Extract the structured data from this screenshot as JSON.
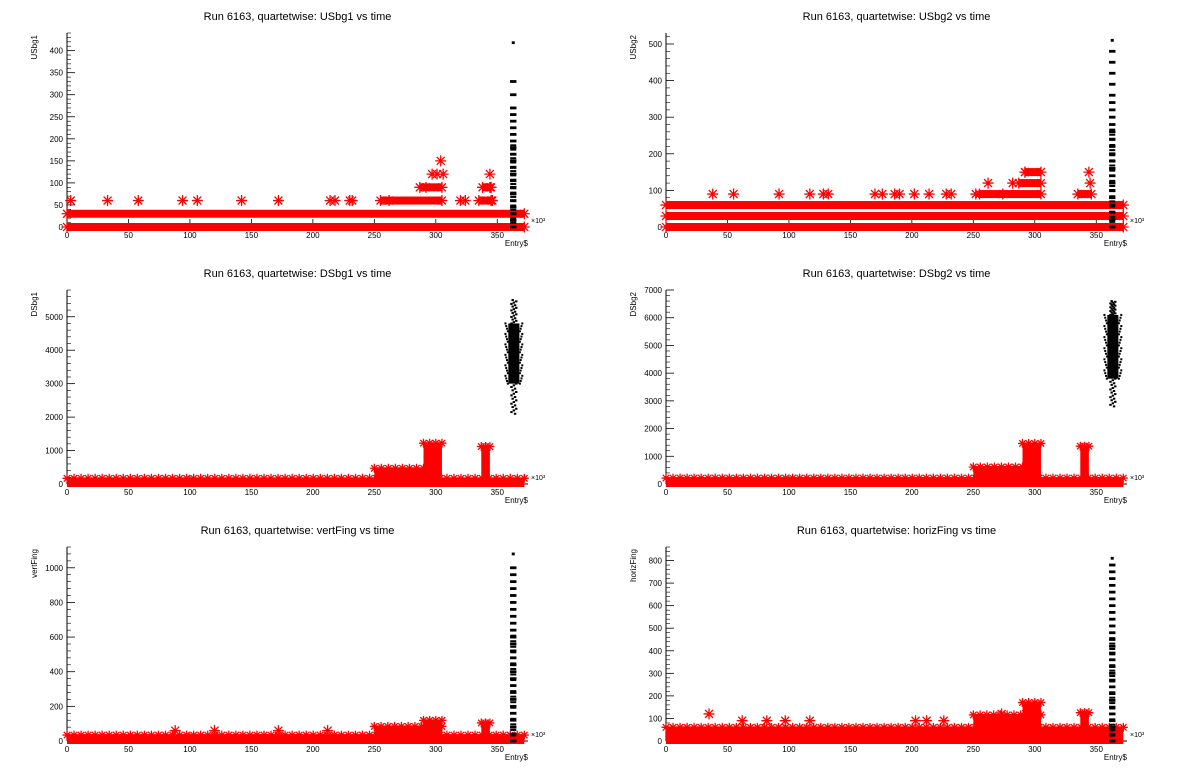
{
  "chart_data": [
    {
      "type": "scatter",
      "title": "Run 6163, quartetwise: USbg1 vs time",
      "xlabel": "Entry$",
      "ylabel": "USbg1",
      "x_exponent": "×10³",
      "xlim": [
        0,
        375
      ],
      "ylim": [
        0,
        440
      ],
      "xticks": [
        0,
        50,
        100,
        150,
        200,
        250,
        300,
        350
      ],
      "yticks": [
        0,
        50,
        100,
        150,
        200,
        250,
        300,
        350,
        400
      ],
      "series": [
        {
          "color": "#ff0000",
          "marker": "star",
          "bands": [
            {
              "y": 0,
              "x_start": 0,
              "x_end": 372
            },
            {
              "y": 30,
              "x_start": 0,
              "x_end": 372
            },
            {
              "y": 60,
              "x_start": 255,
              "x_end": 305
            },
            {
              "y": 90,
              "x_start": 287,
              "x_end": 305
            },
            {
              "y": 60,
              "x_start": 335,
              "x_end": 345
            },
            {
              "y": 90,
              "x_start": 338,
              "x_end": 344
            }
          ],
          "x": [
            3,
            33,
            58,
            94,
            106,
            142,
            172,
            214,
            218,
            230,
            232,
            262,
            292,
            297,
            301,
            304,
            306,
            320,
            324,
            344,
            345,
            346
          ],
          "y": [
            60,
            60,
            60,
            60,
            60,
            60,
            60,
            60,
            60,
            60,
            60,
            60,
            90,
            120,
            120,
            150,
            120,
            60,
            60,
            120,
            90,
            60
          ]
        },
        {
          "color": "#000000",
          "marker": "dot",
          "column": {
            "x": 363,
            "values": [
              0,
              15,
              30,
              45,
              60,
              75,
              90,
              105,
              120,
              135,
              150,
              165,
              180,
              195,
              210,
              225,
              240,
              255,
              270,
              300,
              330,
              418
            ]
          }
        }
      ]
    },
    {
      "type": "scatter",
      "title": "Run 6163, quartetwise: USbg2 vs time",
      "xlabel": "Entry$",
      "ylabel": "USbg2",
      "x_exponent": "×10³",
      "xlim": [
        0,
        375
      ],
      "ylim": [
        0,
        530
      ],
      "xticks": [
        0,
        50,
        100,
        150,
        200,
        250,
        300,
        350
      ],
      "yticks": [
        0,
        100,
        200,
        300,
        400,
        500
      ],
      "series": [
        {
          "color": "#ff0000",
          "marker": "star",
          "bands": [
            {
              "y": 0,
              "x_start": 0,
              "x_end": 372
            },
            {
              "y": 30,
              "x_start": 0,
              "x_end": 372
            },
            {
              "y": 60,
              "x_start": 0,
              "x_end": 372
            },
            {
              "y": 90,
              "x_start": 255,
              "x_end": 305
            },
            {
              "y": 120,
              "x_start": 287,
              "x_end": 305
            },
            {
              "y": 150,
              "x_start": 292,
              "x_end": 305
            },
            {
              "y": 90,
              "x_start": 335,
              "x_end": 346
            }
          ],
          "x": [
            38,
            55,
            92,
            117,
            128,
            132,
            170,
            176,
            186,
            190,
            202,
            214,
            228,
            232,
            252,
            262,
            274,
            282,
            292,
            344,
            345
          ],
          "y": [
            90,
            90,
            90,
            90,
            90,
            90,
            90,
            90,
            90,
            90,
            90,
            90,
            90,
            90,
            90,
            120,
            90,
            120,
            150,
            150,
            120
          ]
        },
        {
          "color": "#000000",
          "marker": "dot",
          "column": {
            "x": 363,
            "values": [
              0,
              20,
              40,
              60,
              80,
              100,
              120,
              140,
              160,
              180,
              200,
              220,
              240,
              260,
              280,
              300,
              320,
              340,
              360,
              390,
              420,
              450,
              480,
              510
            ]
          }
        }
      ]
    },
    {
      "type": "scatter",
      "title": "Run 6163, quartetwise: DSbg1 vs time",
      "xlabel": "Entry$",
      "ylabel": "DSbg1",
      "x_exponent": "×10³",
      "xlim": [
        0,
        375
      ],
      "ylim": [
        0,
        5800
      ],
      "xticks": [
        0,
        50,
        100,
        150,
        200,
        250,
        300,
        350
      ],
      "yticks": [
        0,
        1000,
        2000,
        3000,
        4000,
        5000
      ],
      "series": [
        {
          "color": "#ff0000",
          "marker": "star",
          "areas": [
            {
              "x_start": 0,
              "x_end": 372,
              "y_low": 0,
              "y_high": 200
            },
            {
              "x_start": 250,
              "x_end": 290,
              "y_low": 0,
              "y_high": 500
            },
            {
              "x_start": 290,
              "x_end": 305,
              "y_low": 0,
              "y_high": 1250
            },
            {
              "x_start": 337,
              "x_end": 344,
              "y_low": 0,
              "y_high": 1150
            }
          ]
        },
        {
          "color": "#000000",
          "marker": "dot",
          "cluster": {
            "x_start": 359,
            "x_end": 368,
            "y_low": 2100,
            "y_high": 5500,
            "y_dense_low": 3000,
            "y_dense_high": 4800
          }
        }
      ]
    },
    {
      "type": "scatter",
      "title": "Run 6163, quartetwise: DSbg2 vs time",
      "xlabel": "Entry$",
      "ylabel": "DSbg2",
      "x_exponent": "×10³",
      "xlim": [
        0,
        375
      ],
      "ylim": [
        0,
        7000
      ],
      "xticks": [
        0,
        50,
        100,
        150,
        200,
        250,
        300,
        350
      ],
      "yticks": [
        0,
        1000,
        2000,
        3000,
        4000,
        5000,
        6000,
        7000
      ],
      "series": [
        {
          "color": "#ff0000",
          "marker": "star",
          "areas": [
            {
              "x_start": 0,
              "x_end": 372,
              "y_low": 0,
              "y_high": 250
            },
            {
              "x_start": 250,
              "x_end": 290,
              "y_low": 0,
              "y_high": 650
            },
            {
              "x_start": 290,
              "x_end": 305,
              "y_low": 0,
              "y_high": 1500
            },
            {
              "x_start": 337,
              "x_end": 344,
              "y_low": 0,
              "y_high": 1400
            }
          ]
        },
        {
          "color": "#000000",
          "marker": "dot",
          "cluster": {
            "x_start": 359,
            "x_end": 368,
            "y_low": 2800,
            "y_high": 6600,
            "y_dense_low": 3800,
            "y_dense_high": 6100
          }
        }
      ]
    },
    {
      "type": "scatter",
      "title": "Run 6163, quartetwise: vertFing vs time",
      "xlabel": "Entry$",
      "ylabel": "vertFing",
      "x_exponent": "×10³",
      "xlim": [
        0,
        375
      ],
      "ylim": [
        0,
        1120
      ],
      "xticks": [
        0,
        50,
        100,
        150,
        200,
        250,
        300,
        350
      ],
      "yticks": [
        0,
        200,
        400,
        600,
        800,
        1000
      ],
      "series": [
        {
          "color": "#ff0000",
          "marker": "star",
          "areas": [
            {
              "x_start": 0,
              "x_end": 372,
              "y_low": 0,
              "y_high": 40
            },
            {
              "x_start": 250,
              "x_end": 305,
              "y_low": 0,
              "y_high": 90
            },
            {
              "x_start": 290,
              "x_end": 305,
              "y_low": 0,
              "y_high": 125
            },
            {
              "x_start": 337,
              "x_end": 344,
              "y_low": 0,
              "y_high": 110
            }
          ],
          "x": [
            88,
            120,
            172,
            212
          ],
          "y": [
            60,
            60,
            60,
            60
          ]
        },
        {
          "color": "#000000",
          "marker": "dot",
          "column": {
            "x": 363,
            "values": [
              0,
              40,
              80,
              120,
              160,
              200,
              240,
              280,
              320,
              360,
              400,
              440,
              480,
              520,
              560,
              600,
              640,
              680,
              720,
              760,
              800,
              840,
              880,
              920,
              960,
              1000,
              1080
            ]
          }
        }
      ]
    },
    {
      "type": "scatter",
      "title": "Run 6163, quartetwise: horizFing vs time",
      "xlabel": "Entry$",
      "ylabel": "horizFing",
      "x_exponent": "×10³",
      "xlim": [
        0,
        375
      ],
      "ylim": [
        0,
        860
      ],
      "xticks": [
        0,
        50,
        100,
        150,
        200,
        250,
        300,
        350
      ],
      "yticks": [
        0,
        100,
        200,
        300,
        400,
        500,
        600,
        700,
        800
      ],
      "series": [
        {
          "color": "#ff0000",
          "marker": "star",
          "areas": [
            {
              "x_start": 0,
              "x_end": 372,
              "y_low": 0,
              "y_high": 65
            },
            {
              "x_start": 250,
              "x_end": 305,
              "y_low": 0,
              "y_high": 120
            },
            {
              "x_start": 290,
              "x_end": 305,
              "y_low": 0,
              "y_high": 175
            },
            {
              "x_start": 337,
              "x_end": 344,
              "y_low": 0,
              "y_high": 130
            }
          ],
          "x": [
            35,
            62,
            82,
            97,
            117,
            203,
            212,
            226,
            256,
            273,
            293
          ],
          "y": [
            120,
            90,
            90,
            90,
            90,
            90,
            90,
            90,
            90,
            120,
            120
          ]
        },
        {
          "color": "#000000",
          "marker": "dot",
          "column": {
            "x": 363,
            "values": [
              0,
              30,
              60,
              90,
              120,
              150,
              180,
              210,
              240,
              270,
              300,
              330,
              360,
              390,
              420,
              450,
              480,
              510,
              540,
              570,
              600,
              630,
              660,
              690,
              720,
              750,
              780,
              810
            ]
          }
        }
      ]
    }
  ]
}
